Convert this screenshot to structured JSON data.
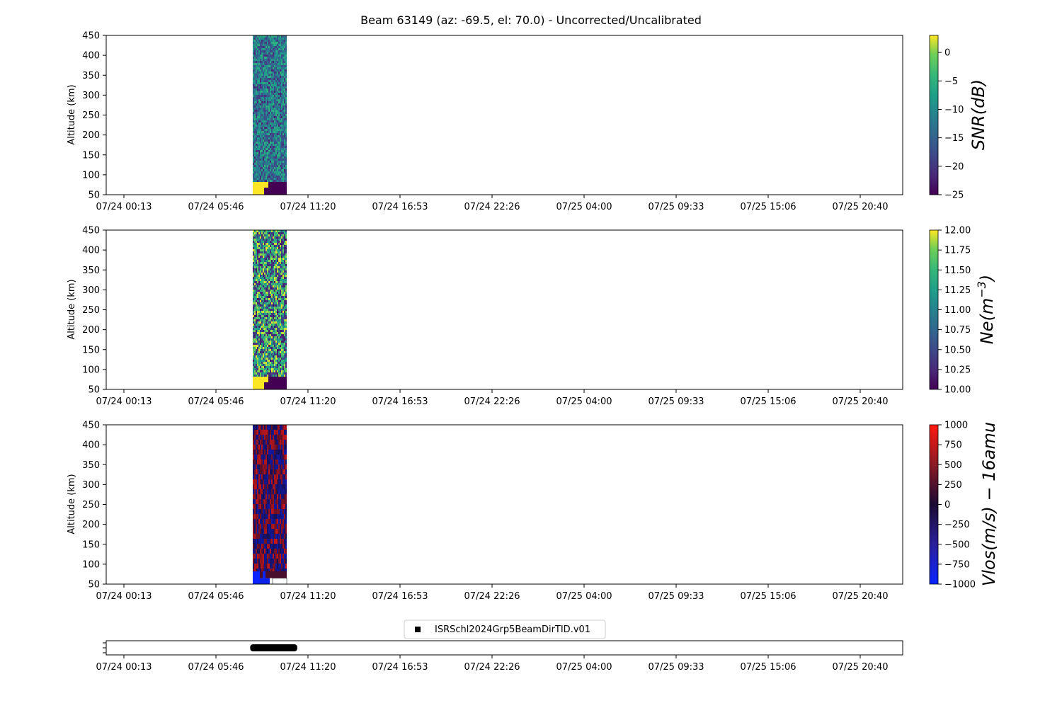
{
  "figure": {
    "title": "Beam 63149 (az: -69.5, el: 70.0) - Uncorrected/Uncalibrated"
  },
  "x_ticks": [
    "07/24 00:13",
    "07/24 05:46",
    "07/24 11:20",
    "07/24 16:53",
    "07/24 22:26",
    "07/25 04:00",
    "07/25 09:33",
    "07/25 15:06",
    "07/25 20:40"
  ],
  "panels": [
    {
      "id": "snr",
      "ylabel": "Altitude (km)",
      "cbar_label": "SNR(dB)",
      "cbar_ticks": [
        "0",
        "−5",
        "−10",
        "−15",
        "−20",
        "−25"
      ],
      "cbar_tick_values": [
        0,
        -5,
        -10,
        -15,
        -20,
        -25
      ],
      "cbar_range": [
        -25,
        3
      ],
      "colormap": "viridis"
    },
    {
      "id": "ne",
      "ylabel": "Altitude (km)",
      "cbar_label_main": "Ne(m",
      "cbar_label_sup": "−3",
      "cbar_label_end": ")",
      "cbar_ticks": [
        "12.00",
        "11.75",
        "11.50",
        "11.25",
        "11.00",
        "10.75",
        "10.50",
        "10.25",
        "10.00"
      ],
      "cbar_tick_values": [
        12.0,
        11.75,
        11.5,
        11.25,
        11.0,
        10.75,
        10.5,
        10.25,
        10.0
      ],
      "cbar_range": [
        10,
        12
      ],
      "colormap": "viridis"
    },
    {
      "id": "vlos",
      "ylabel": "Altitude (km)",
      "cbar_label": "Vlos(m/s) − 16amu",
      "cbar_ticks": [
        "1000",
        "750",
        "500",
        "250",
        "0",
        "−250",
        "−500",
        "−750",
        "−1000"
      ],
      "cbar_tick_values": [
        1000,
        750,
        500,
        250,
        0,
        -250,
        -500,
        -750,
        -1000
      ],
      "cbar_range": [
        -1000,
        1000
      ],
      "colormap": "blue-black-red"
    }
  ],
  "y_ticks": [
    "450",
    "400",
    "350",
    "300",
    "250",
    "200",
    "150",
    "100",
    "50"
  ],
  "legend": {
    "label": "ISRSchl2024Grp5BeamDirTID.v01"
  },
  "chart_data": {
    "type": "heatmap",
    "title": "Beam 63149 (az: -69.5, el: 70.0) - Uncorrected/Uncalibrated",
    "xlabel": "",
    "ylabel": "Altitude (km)",
    "x_range": [
      "07/24 00:13",
      "07/25 22:00"
    ],
    "x_ticks": [
      "07/24 00:13",
      "07/24 05:46",
      "07/24 11:20",
      "07/24 16:53",
      "07/24 22:26",
      "07/25 04:00",
      "07/25 09:33",
      "07/25 15:06",
      "07/25 20:40"
    ],
    "ylim": [
      50,
      450
    ],
    "data_time_span": [
      "07/24 08:00",
      "07/24 10:00"
    ],
    "series": [
      {
        "name": "SNR(dB)",
        "clim": [
          -25,
          3
        ],
        "low_alt_block": {
          "alt_range": [
            50,
            82
          ],
          "values": [
            3,
            -25
          ]
        },
        "typical_value": -12
      },
      {
        "name": "Ne(m^-3)",
        "clim": [
          10,
          12
        ],
        "low_alt_block": {
          "alt_range": [
            50,
            82
          ],
          "values": [
            12,
            10
          ]
        },
        "typical_value": 11.5
      },
      {
        "name": "Vlos(m/s) - 16amu",
        "clim": [
          -1000,
          1000
        ],
        "low_alt_block": {
          "alt_range": [
            50,
            82
          ],
          "values": [
            -1000,
            300
          ]
        },
        "typical_value": 200
      }
    ],
    "experiment_timeline": {
      "label": "ISRSchl2024Grp5BeamDirTID.v01",
      "start": "07/24 08:00",
      "end": "07/24 10:30"
    }
  }
}
